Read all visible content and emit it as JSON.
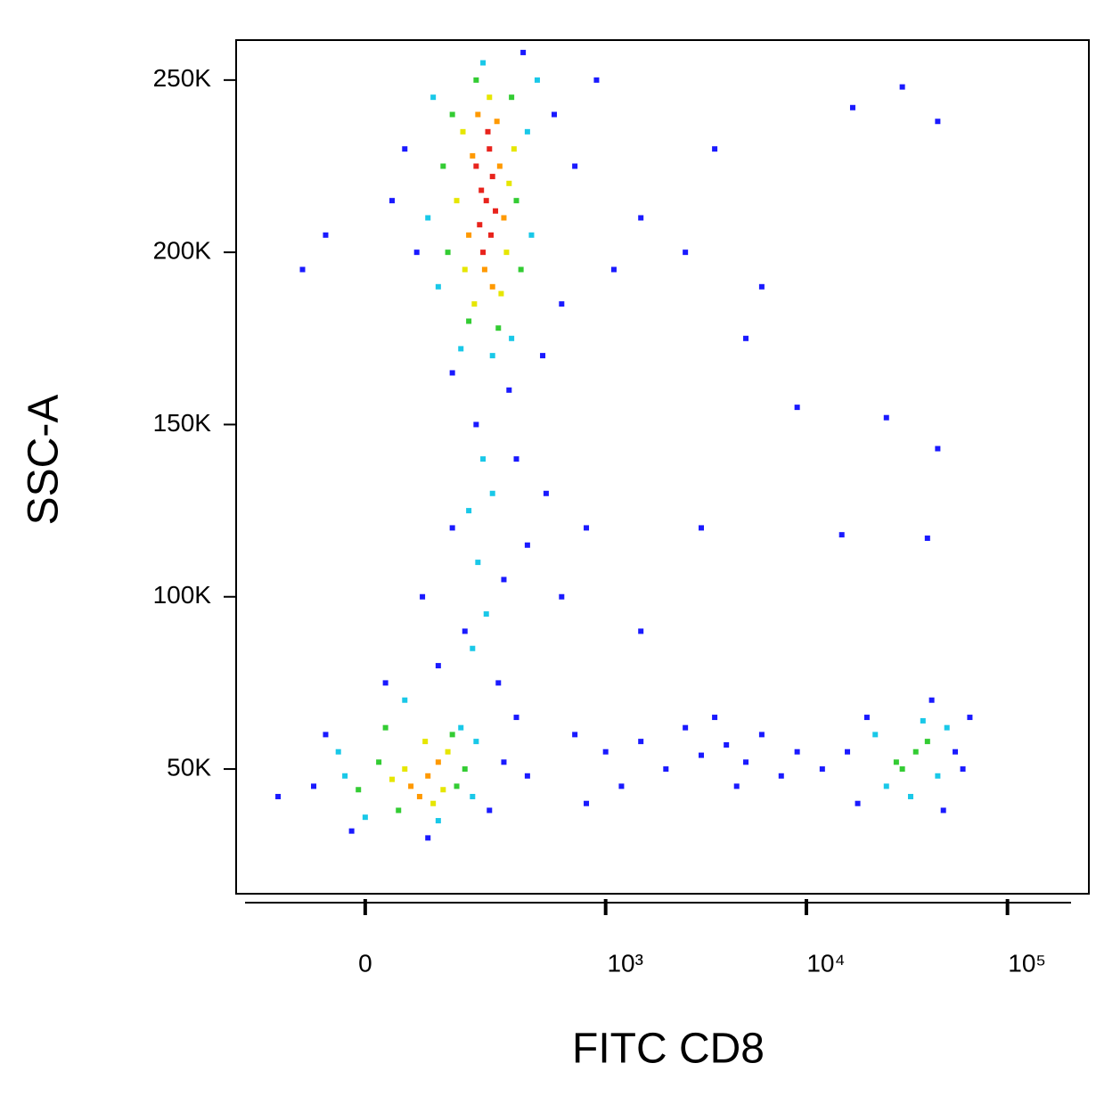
{
  "chart_data": {
    "type": "scatter",
    "xlabel": "FITC CD8",
    "ylabel": "SSC-A",
    "xscale": "biexponential",
    "xlim": [
      -266,
      254000
    ],
    "ylim": [
      13800,
      261600
    ],
    "xticks": [
      0,
      {
        "value": 1000,
        "label": "10³"
      },
      {
        "value": 10000,
        "label": "10⁴"
      },
      {
        "value": 100000,
        "label": "10⁵"
      }
    ],
    "yticks": [
      {
        "value": 50000,
        "label": "50K"
      },
      {
        "value": 100000,
        "label": "100K"
      },
      {
        "value": 150000,
        "label": "150K"
      },
      {
        "value": 200000,
        "label": "200K"
      },
      {
        "value": 250000,
        "label": "250K"
      }
    ],
    "series": [
      {
        "color": "#1a1aff",
        "x": [
          60,
          80,
          550,
          700,
          900,
          1500,
          600,
          480,
          320,
          150,
          2500,
          3500,
          40,
          380,
          1100,
          -60,
          -100,
          150,
          300,
          350,
          180,
          280,
          120,
          400,
          500,
          600,
          800,
          210,
          90,
          700,
          1000,
          1500,
          2000,
          2500,
          3000,
          4000,
          5000,
          6000,
          7500,
          9000,
          12000,
          1200,
          800,
          3500,
          4500,
          -80,
          -150,
          -60,
          250,
          300,
          400,
          -20,
          100,
          30,
          350,
          18000,
          55000,
          65000,
          20000,
          48000,
          42000,
          60000,
          16000,
          30000,
          45000,
          17000,
          45000,
          25000,
          40000,
          9000,
          5000,
          15000,
          3000,
          1500,
          6000
        ],
        "y": [
          230000,
          200000,
          240000,
          225000,
          250000,
          210000,
          185000,
          170000,
          160000,
          165000,
          200000,
          230000,
          215000,
          258000,
          195000,
          205000,
          195000,
          120000,
          105000,
          140000,
          90000,
          75000,
          80000,
          115000,
          130000,
          100000,
          120000,
          150000,
          100000,
          60000,
          55000,
          58000,
          50000,
          62000,
          54000,
          57000,
          52000,
          60000,
          48000,
          55000,
          50000,
          45000,
          40000,
          65000,
          45000,
          45000,
          42000,
          60000,
          38000,
          52000,
          48000,
          32000,
          30000,
          75000,
          65000,
          40000,
          55000,
          65000,
          65000,
          38000,
          70000,
          50000,
          55000,
          248000,
          238000,
          242000,
          143000,
          152000,
          117000,
          155000,
          175000,
          118000,
          120000,
          90000,
          190000
        ]
      },
      {
        "color": "#19c8e8",
        "x": [
          110,
          400,
          120,
          420,
          260,
          170,
          330,
          230,
          100,
          450,
          215,
          240,
          190,
          260,
          200,
          230,
          -30,
          200,
          170,
          0,
          -40,
          120,
          210,
          60,
          22000,
          45000,
          33000,
          50000,
          25000,
          38000
        ],
        "y": [
          245000,
          235000,
          190000,
          205000,
          170000,
          172000,
          175000,
          255000,
          210000,
          250000,
          110000,
          95000,
          125000,
          130000,
          85000,
          140000,
          48000,
          42000,
          62000,
          36000,
          55000,
          35000,
          58000,
          70000,
          60000,
          48000,
          42000,
          62000,
          45000,
          64000
        ]
      },
      {
        "color": "#33cc33",
        "x": [
          150,
          350,
          140,
          330,
          210,
          280,
          190,
          370,
          130,
          20,
          160,
          50,
          150,
          -10,
          180,
          30,
          35000,
          30000,
          40000,
          28000
        ],
        "y": [
          240000,
          215000,
          200000,
          245000,
          250000,
          178000,
          180000,
          195000,
          225000,
          52000,
          45000,
          38000,
          60000,
          44000,
          50000,
          62000,
          55000,
          50000,
          58000,
          52000
        ]
      },
      {
        "color": "#e6e600",
        "x": [
          175,
          320,
          180,
          310,
          250,
          205,
          290,
          160,
          340,
          60,
          110,
          140,
          40,
          95,
          130
        ],
        "y": [
          235000,
          220000,
          195000,
          200000,
          245000,
          185000,
          188000,
          215000,
          230000,
          50000,
          40000,
          55000,
          47000,
          58000,
          44000
        ]
      },
      {
        "color": "#ff9900",
        "x": [
          200,
          285,
          190,
          300,
          235,
          275,
          215,
          260,
          100,
          70,
          120,
          85
        ],
        "y": [
          228000,
          225000,
          205000,
          210000,
          195000,
          238000,
          240000,
          190000,
          48000,
          45000,
          52000,
          42000
        ]
      },
      {
        "color": "#e8231c",
        "x": [
          240,
          260,
          220,
          250,
          230,
          270,
          210,
          255,
          245,
          225
        ],
        "y": [
          215000,
          222000,
          208000,
          230000,
          200000,
          212000,
          225000,
          205000,
          235000,
          218000
        ]
      }
    ]
  }
}
